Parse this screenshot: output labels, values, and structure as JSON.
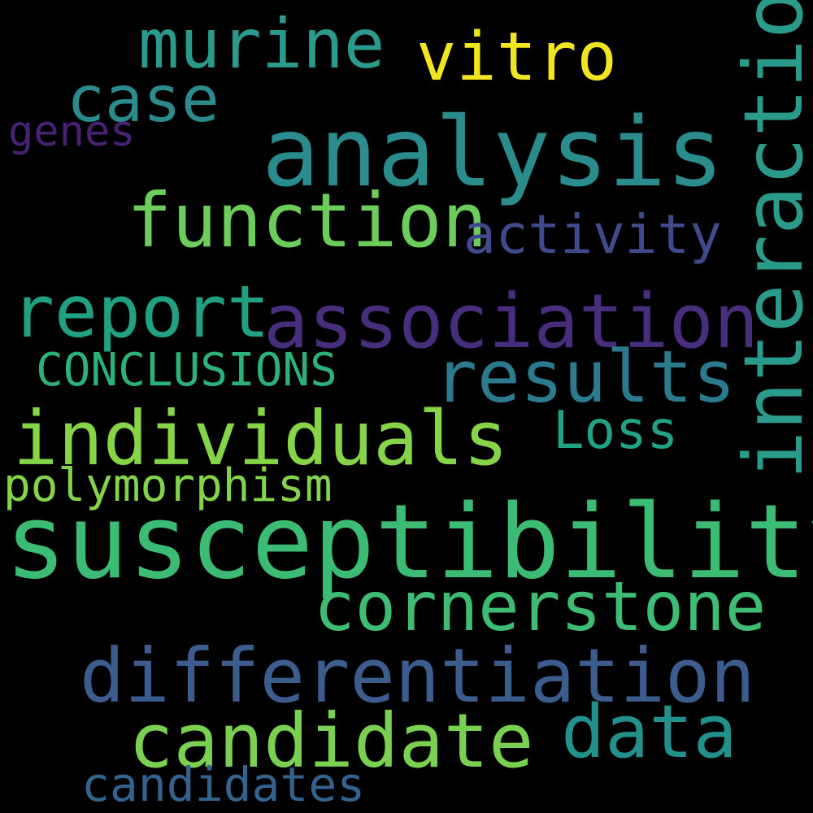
{
  "words": {
    "murine": {
      "text": "murine",
      "color": "#2a9a8c"
    },
    "vitro": {
      "text": "vitro",
      "color": "#f0e51e"
    },
    "case": {
      "text": "case",
      "color": "#2a8a8c"
    },
    "genes": {
      "text": "genes",
      "color": "#482173"
    },
    "analysis": {
      "text": "analysis",
      "color": "#2a8c8c"
    },
    "interaction": {
      "text": "interaction",
      "color": "#2a9a8a"
    },
    "function": {
      "text": "function",
      "color": "#6ccd5a"
    },
    "activity": {
      "text": "activity",
      "color": "#3e4a89"
    },
    "report": {
      "text": "report",
      "color": "#21a184"
    },
    "association": {
      "text": "association",
      "color": "#472d7b"
    },
    "conclusions": {
      "text": "CONCLUSIONS",
      "color": "#2db17a"
    },
    "results": {
      "text": "results",
      "color": "#2c7a8e"
    },
    "individuals": {
      "text": "individuals",
      "color": "#86d549"
    },
    "loss": {
      "text": "Loss",
      "color": "#22a386"
    },
    "polymorphism": {
      "text": "polymorphism",
      "color": "#84d44b"
    },
    "susceptibility": {
      "text": "susceptibility",
      "color": "#3cbb75"
    },
    "cornerstone": {
      "text": "cornerstone",
      "color": "#3fbc73"
    },
    "differentiation": {
      "text": "differentiation",
      "color": "#3b5c8c"
    },
    "data": {
      "text": "data",
      "color": "#23918b"
    },
    "candidate": {
      "text": "candidate",
      "color": "#7ad151"
    },
    "candidates": {
      "text": "candidates",
      "color": "#33638d"
    }
  }
}
